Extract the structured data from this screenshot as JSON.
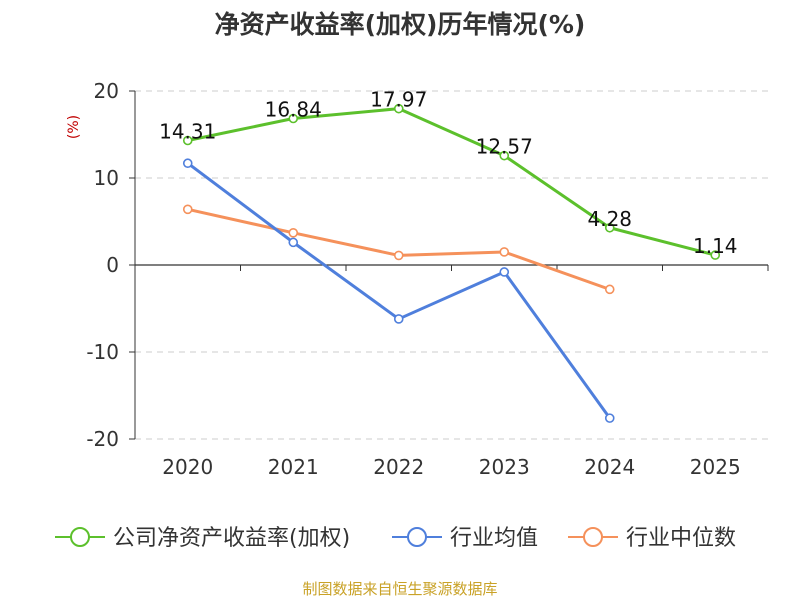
{
  "chart_data": {
    "type": "line",
    "title": "净资产收益率(加权)历年情况(%)",
    "ylabel": "(%)",
    "xlabel": "",
    "categories": [
      "2020",
      "2021",
      "2022",
      "2023",
      "2024",
      "2025"
    ],
    "ylim": [
      -20,
      20
    ],
    "yticks": [
      20,
      10,
      0,
      -10,
      -20
    ],
    "grid": true,
    "legend_position": "bottom",
    "series": [
      {
        "name": "公司净资产收益率(加权)",
        "color": "#5cc02c",
        "values": [
          14.31,
          16.84,
          17.97,
          12.57,
          4.28,
          1.14
        ],
        "labels": [
          "14.31",
          "16.84",
          "17.97",
          "12.57",
          "4.28",
          "1.14"
        ]
      },
      {
        "name": "行业均值",
        "color": "#4f7fdc",
        "values": [
          11.7,
          2.6,
          -6.2,
          -0.8,
          -17.6,
          null
        ]
      },
      {
        "name": "行业中位数",
        "color": "#f5915b",
        "values": [
          6.4,
          3.7,
          1.1,
          1.5,
          -2.8,
          null
        ]
      }
    ]
  },
  "source": "制图数据来自恒生聚源数据库"
}
